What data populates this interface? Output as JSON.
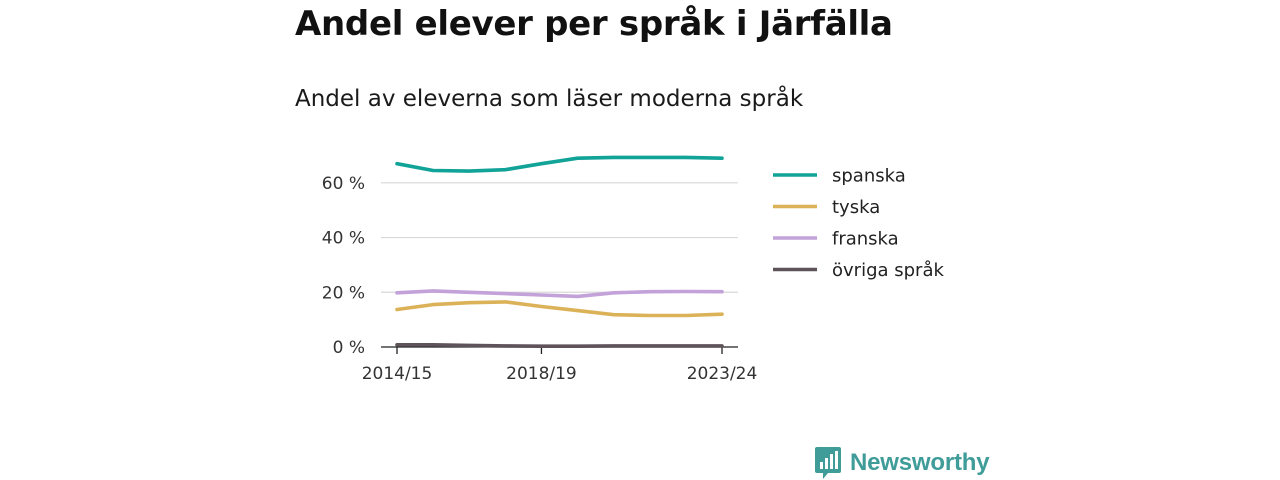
{
  "title": "Andel elever per språk i Järfälla",
  "subtitle": "Andel av eleverna som läser moderna språk",
  "brand": {
    "name": "Newsworthy",
    "icon": "newsworthy-logo-icon",
    "color": "#3f9c98"
  },
  "chart_data": {
    "type": "line",
    "x": [
      "2014/15",
      "2015/16",
      "2016/17",
      "2017/18",
      "2018/19",
      "2019/20",
      "2020/21",
      "2021/22",
      "2022/23",
      "2023/24"
    ],
    "x_tick_labels": [
      "2014/15",
      "2018/19",
      "2023/24"
    ],
    "y_ticks": [
      0,
      20,
      40,
      60
    ],
    "y_tick_labels": [
      "0 %",
      "20 %",
      "40 %",
      "60 %"
    ],
    "ylim": [
      0,
      72
    ],
    "grid": "horizontal",
    "legend_position": "right",
    "series": [
      {
        "name": "spanska",
        "color": "#11a398",
        "values": [
          67,
          64.5,
          64.3,
          64.8,
          67,
          69,
          69.3,
          69.3,
          69.3,
          69
        ]
      },
      {
        "name": "tyska",
        "color": "#dcb258",
        "values": [
          13.7,
          15.5,
          16.2,
          16.5,
          14.8,
          13.3,
          11.8,
          11.5,
          11.5,
          12
        ]
      },
      {
        "name": "franska",
        "color": "#c2a2d8",
        "values": [
          19.8,
          20.5,
          20,
          19.5,
          19,
          18.5,
          19.8,
          20.2,
          20.3,
          20.2
        ]
      },
      {
        "name": "övriga språk",
        "color": "#5e5359",
        "values": [
          0.8,
          0.8,
          0.6,
          0.4,
          0.3,
          0.3,
          0.4,
          0.4,
          0.4,
          0.4
        ]
      }
    ]
  }
}
